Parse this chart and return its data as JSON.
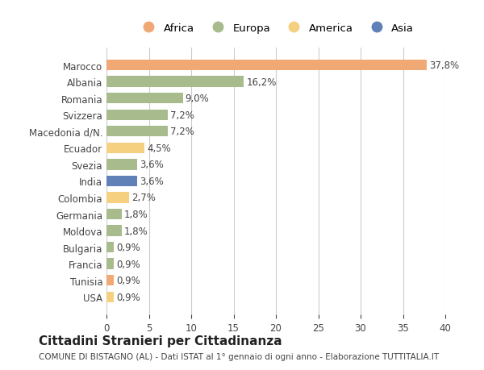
{
  "countries": [
    "Marocco",
    "Albania",
    "Romania",
    "Svizzera",
    "Macedonia d/N.",
    "Ecuador",
    "Svezia",
    "India",
    "Colombia",
    "Germania",
    "Moldova",
    "Bulgaria",
    "Francia",
    "Tunisia",
    "USA"
  ],
  "values": [
    37.8,
    16.2,
    9.0,
    7.2,
    7.2,
    4.5,
    3.6,
    3.6,
    2.7,
    1.8,
    1.8,
    0.9,
    0.9,
    0.9,
    0.9
  ],
  "labels": [
    "37,8%",
    "16,2%",
    "9,0%",
    "7,2%",
    "7,2%",
    "4,5%",
    "3,6%",
    "3,6%",
    "2,7%",
    "1,8%",
    "1,8%",
    "0,9%",
    "0,9%",
    "0,9%",
    "0,9%"
  ],
  "colors": [
    "#F0A875",
    "#A8BB8C",
    "#A8BB8C",
    "#A8BB8C",
    "#A8BB8C",
    "#F5D080",
    "#A8BB8C",
    "#6080B8",
    "#F5D080",
    "#A8BB8C",
    "#A8BB8C",
    "#A8BB8C",
    "#A8BB8C",
    "#F0A875",
    "#F5D080"
  ],
  "legend_labels": [
    "Africa",
    "Europa",
    "America",
    "Asia"
  ],
  "legend_colors": [
    "#F0A875",
    "#A8BB8C",
    "#F5D080",
    "#6080B8"
  ],
  "title": "Cittadini Stranieri per Cittadinanza",
  "subtitle": "COMUNE DI BISTAGNO (AL) - Dati ISTAT al 1° gennaio di ogni anno - Elaborazione TUTTITALIA.IT",
  "xlim": [
    0,
    40
  ],
  "xticks": [
    0,
    5,
    10,
    15,
    20,
    25,
    30,
    35,
    40
  ],
  "bg_color": "#ffffff",
  "grid_color": "#cccccc",
  "bar_height": 0.65,
  "label_fontsize": 8.5,
  "tick_fontsize": 8.5
}
